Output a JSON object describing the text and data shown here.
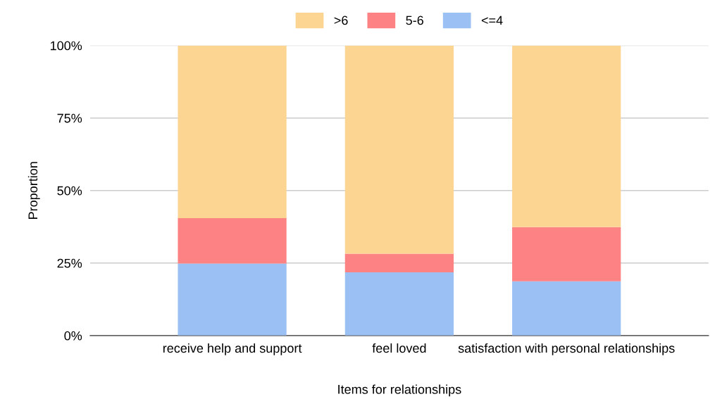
{
  "chart_data": {
    "type": "bar",
    "stacked": true,
    "xlabel": "Items for relationships",
    "ylabel": "Proportion",
    "categories": [
      "receive help and support",
      "feel loved",
      "satisfaction with personal relationships"
    ],
    "series": [
      {
        "name": "<=4",
        "color": "#9bc0f4",
        "values": [
          24.8,
          21.8,
          18.7
        ]
      },
      {
        "name": "5-6",
        "color": "#fd8283",
        "values": [
          15.7,
          6.4,
          18.7
        ]
      },
      {
        "name": ">6",
        "color": "#fdd592",
        "values": [
          59.5,
          71.8,
          62.6
        ]
      }
    ],
    "ylim": [
      0,
      100
    ],
    "yticks": [
      {
        "value": 0,
        "label": "0%"
      },
      {
        "value": 25,
        "label": "25%"
      },
      {
        "value": 50,
        "label": "50%"
      },
      {
        "value": 75,
        "label": "75%"
      },
      {
        "value": 100,
        "label": "100%"
      }
    ],
    "grid": "y",
    "legend": "top"
  }
}
